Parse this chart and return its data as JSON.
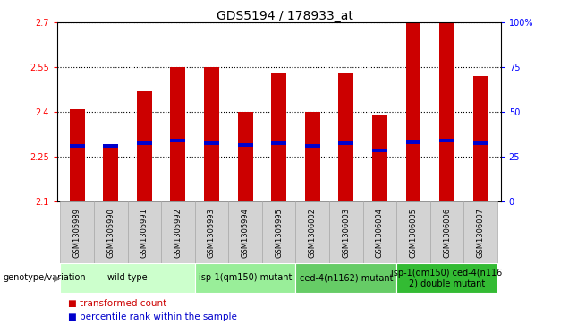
{
  "title": "GDS5194 / 178933_at",
  "samples": [
    "GSM1305989",
    "GSM1305990",
    "GSM1305991",
    "GSM1305992",
    "GSM1305993",
    "GSM1305994",
    "GSM1305995",
    "GSM1306002",
    "GSM1306003",
    "GSM1306004",
    "GSM1306005",
    "GSM1306006",
    "GSM1306007"
  ],
  "transformed_counts": [
    2.41,
    2.29,
    2.47,
    2.55,
    2.55,
    2.4,
    2.53,
    2.4,
    2.53,
    2.39,
    2.7,
    2.7,
    2.52
  ],
  "percentile_values": [
    2.285,
    2.285,
    2.295,
    2.305,
    2.295,
    2.29,
    2.295,
    2.285,
    2.295,
    2.27,
    2.3,
    2.305,
    2.295
  ],
  "y_min": 2.1,
  "y_max": 2.7,
  "y_ticks": [
    2.1,
    2.25,
    2.4,
    2.55,
    2.7
  ],
  "y_tick_labels": [
    "2.1",
    "2.25",
    "2.4",
    "2.55",
    "2.7"
  ],
  "right_y_ticks": [
    0,
    25,
    50,
    75,
    100
  ],
  "right_y_tick_labels": [
    "0",
    "25",
    "50",
    "75",
    "100%"
  ],
  "bar_color": "#cc0000",
  "percentile_color": "#0000cc",
  "cell_bg_color": "#d3d3d3",
  "cell_border_color": "#999999",
  "groups": [
    {
      "label": "wild type",
      "start": 0,
      "end": 3,
      "color": "#ccffcc"
    },
    {
      "label": "isp-1(qm150) mutant",
      "start": 4,
      "end": 6,
      "color": "#99ee99"
    },
    {
      "label": "ced-4(n1162) mutant",
      "start": 7,
      "end": 9,
      "color": "#66cc66"
    },
    {
      "label": "isp-1(qm150) ced-4(n116\n2) double mutant",
      "start": 10,
      "end": 12,
      "color": "#33bb33"
    }
  ],
  "genotype_label": "genotype/variation",
  "legend_items": [
    {
      "label": "transformed count",
      "color": "#cc0000"
    },
    {
      "label": "percentile rank within the sample",
      "color": "#0000cc"
    }
  ],
  "title_fontsize": 10,
  "tick_fontsize": 7,
  "sample_fontsize": 6,
  "group_fontsize": 7,
  "legend_fontsize": 7.5,
  "bar_width": 0.45
}
